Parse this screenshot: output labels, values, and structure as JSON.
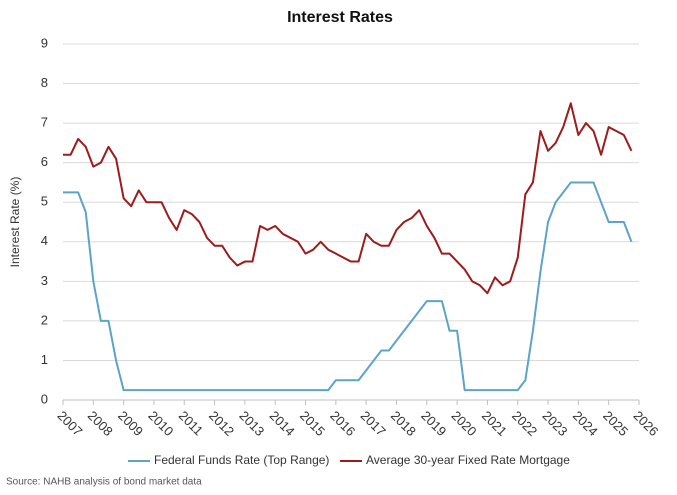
{
  "chart_data": {
    "type": "line",
    "title": "Interest Rates",
    "y_label": "Interest Rate (%)",
    "source": "Source: NAHB analysis of bond market data",
    "x": [
      2007,
      2007.25,
      2007.5,
      2007.75,
      2008,
      2008.25,
      2008.5,
      2008.75,
      2009,
      2009.25,
      2009.5,
      2009.75,
      2010,
      2010.25,
      2010.5,
      2010.75,
      2011,
      2011.25,
      2011.5,
      2011.75,
      2012,
      2012.25,
      2012.5,
      2012.75,
      2013,
      2013.25,
      2013.5,
      2013.75,
      2014,
      2014.25,
      2014.5,
      2014.75,
      2015,
      2015.25,
      2015.5,
      2015.75,
      2016,
      2016.25,
      2016.5,
      2016.75,
      2017,
      2017.25,
      2017.5,
      2017.75,
      2018,
      2018.25,
      2018.5,
      2018.75,
      2019,
      2019.25,
      2019.5,
      2019.75,
      2020,
      2020.25,
      2020.5,
      2020.75,
      2021,
      2021.25,
      2021.5,
      2021.75,
      2022,
      2022.25,
      2022.5,
      2022.75,
      2023,
      2023.25,
      2023.5,
      2023.75,
      2024,
      2024.25,
      2024.5,
      2024.75,
      2025,
      2025.25,
      2025.5,
      2025.75
    ],
    "series": [
      {
        "name": "Federal Funds Rate (Top Range)",
        "color": "#5ca4c6",
        "values": [
          5.25,
          5.25,
          5.25,
          4.75,
          3.0,
          2.0,
          2.0,
          1.0,
          0.25,
          0.25,
          0.25,
          0.25,
          0.25,
          0.25,
          0.25,
          0.25,
          0.25,
          0.25,
          0.25,
          0.25,
          0.25,
          0.25,
          0.25,
          0.25,
          0.25,
          0.25,
          0.25,
          0.25,
          0.25,
          0.25,
          0.25,
          0.25,
          0.25,
          0.25,
          0.25,
          0.25,
          0.5,
          0.5,
          0.5,
          0.5,
          0.75,
          1.0,
          1.25,
          1.25,
          1.5,
          1.75,
          2.0,
          2.25,
          2.5,
          2.5,
          2.5,
          1.75,
          1.75,
          0.25,
          0.25,
          0.25,
          0.25,
          0.25,
          0.25,
          0.25,
          0.25,
          0.5,
          1.75,
          3.25,
          4.5,
          5.0,
          5.25,
          5.5,
          5.5,
          5.5,
          5.5,
          5.0,
          4.5,
          4.5,
          4.5,
          4.0
        ]
      },
      {
        "name": "Average 30-year Fixed Rate Mortgage",
        "color": "#9c1c1c",
        "values": [
          6.2,
          6.2,
          6.6,
          6.4,
          5.9,
          6.0,
          6.4,
          6.1,
          5.1,
          4.9,
          5.3,
          5.0,
          5.0,
          5.0,
          4.6,
          4.3,
          4.8,
          4.7,
          4.5,
          4.1,
          3.9,
          3.9,
          3.6,
          3.4,
          3.5,
          3.5,
          4.4,
          4.3,
          4.4,
          4.2,
          4.1,
          4.0,
          3.7,
          3.8,
          4.0,
          3.8,
          3.7,
          3.6,
          3.5,
          3.5,
          4.2,
          4.0,
          3.9,
          3.9,
          4.3,
          4.5,
          4.6,
          4.8,
          4.4,
          4.1,
          3.7,
          3.7,
          3.5,
          3.3,
          3.0,
          2.9,
          2.7,
          3.1,
          2.9,
          3.0,
          3.6,
          5.2,
          5.5,
          6.8,
          6.3,
          6.5,
          6.9,
          7.5,
          6.7,
          7.0,
          6.8,
          6.2,
          6.9,
          6.8,
          6.7,
          6.3
        ]
      }
    ],
    "xlim": [
      2007,
      2026
    ],
    "xticks": [
      2007,
      2008,
      2009,
      2010,
      2011,
      2012,
      2013,
      2014,
      2015,
      2016,
      2017,
      2018,
      2019,
      2020,
      2021,
      2022,
      2023,
      2024,
      2025,
      2026
    ],
    "ylim": [
      0,
      9
    ],
    "yticks": [
      0,
      1,
      2,
      3,
      4,
      5,
      6,
      7,
      8,
      9
    ],
    "grid": true,
    "legend": "bottom"
  }
}
